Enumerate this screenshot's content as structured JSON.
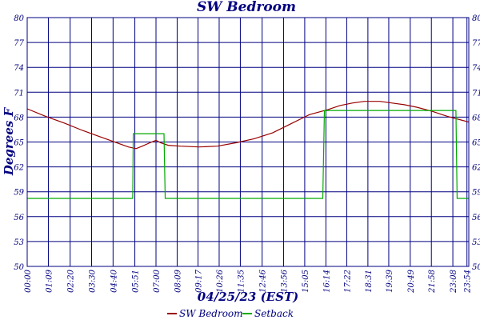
{
  "chart_data": {
    "type": "line",
    "title": "SW Bedroom",
    "xlabel": "04/25/23 (EST)",
    "ylabel": "Degrees F",
    "ylim": [
      50,
      80
    ],
    "y_ticks": [
      "50",
      "53",
      "56",
      "59",
      "62",
      "65",
      "68",
      "71",
      "74",
      "77",
      "80"
    ],
    "x_tick_labels": [
      "00:00",
      "01:09",
      "02:20",
      "03:30",
      "04:40",
      "05:51",
      "07:00",
      "08:09",
      "09:17",
      "10:26",
      "11:35",
      "12:46",
      "13:56",
      "15:05",
      "16:14",
      "17:22",
      "18:31",
      "19:39",
      "20:49",
      "21:58",
      "23:08",
      "23:54"
    ],
    "x_tick_minutes": [
      0,
      69,
      140,
      210,
      280,
      351,
      420,
      489,
      557,
      626,
      695,
      766,
      836,
      905,
      974,
      1042,
      1111,
      1179,
      1249,
      1318,
      1388,
      1434
    ],
    "xlim_minutes": [
      0,
      1440
    ],
    "grid": true,
    "legend_position": "bottom",
    "colors": {
      "grid": "#000080",
      "text": "#000080"
    },
    "series": [
      {
        "name": "SW Bedroom",
        "color": "#990000",
        "x_minutes": [
          0,
          60,
          120,
          180,
          240,
          300,
          330,
          355,
          375,
          400,
          420,
          435,
          460,
          500,
          560,
          620,
          680,
          740,
          800,
          860,
          920,
          980,
          1020,
          1060,
          1100,
          1150,
          1190,
          1230,
          1270,
          1320,
          1370,
          1410,
          1440
        ],
        "values": [
          69.0,
          68.1,
          67.3,
          66.4,
          65.6,
          64.8,
          64.4,
          64.2,
          64.5,
          64.9,
          65.2,
          64.9,
          64.6,
          64.5,
          64.4,
          64.5,
          64.9,
          65.4,
          66.1,
          67.2,
          68.3,
          68.9,
          69.4,
          69.7,
          69.9,
          69.9,
          69.7,
          69.5,
          69.2,
          68.7,
          68.1,
          67.7,
          67.4
        ]
      },
      {
        "name": "Setback",
        "color": "#00aa00",
        "x_minutes": [
          0,
          344,
          346,
          446,
          450,
          964,
          969,
          1398,
          1402,
          1440
        ],
        "values": [
          58.2,
          58.2,
          66.0,
          66.0,
          58.2,
          58.2,
          68.8,
          68.8,
          58.2,
          58.2
        ]
      }
    ]
  }
}
